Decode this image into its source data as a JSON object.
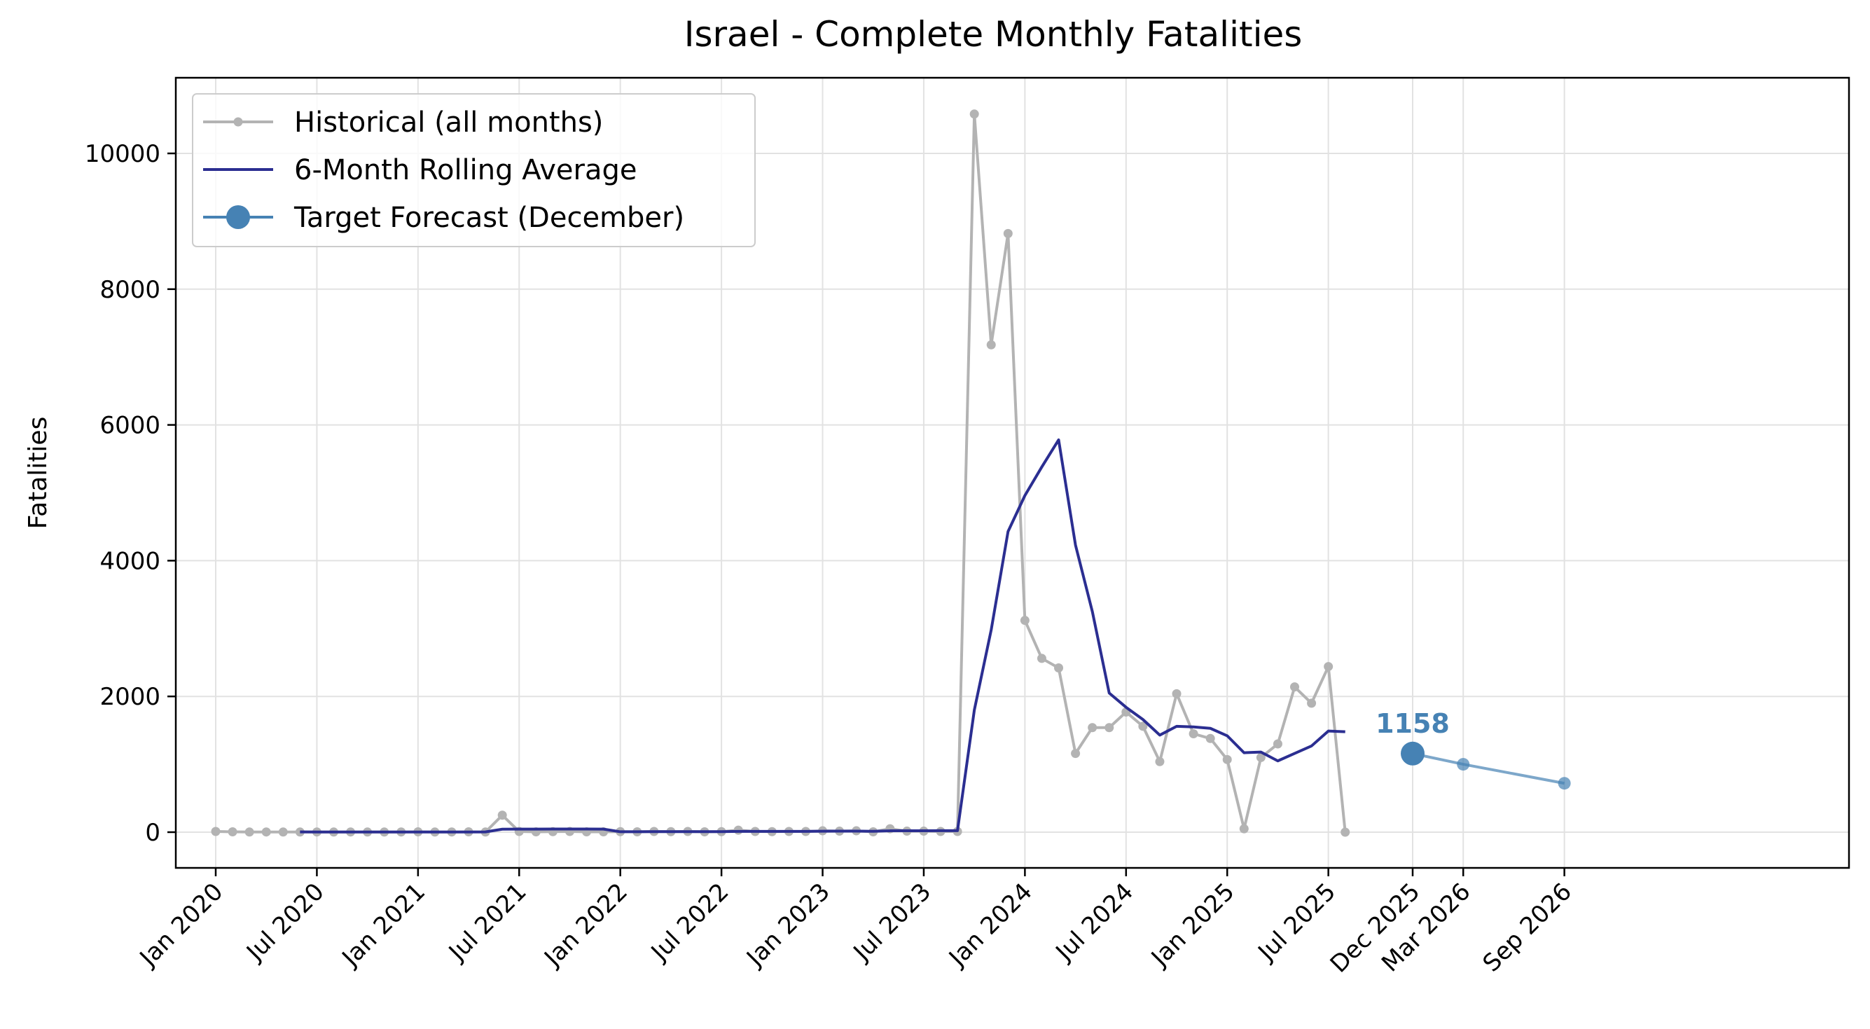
{
  "chart_data": {
    "type": "line",
    "title": "Israel - Complete Monthly Fatalities",
    "xlabel": "",
    "ylabel": "Fatalities",
    "ylim": [
      -500,
      11100
    ],
    "yticks": [
      0,
      2000,
      4000,
      6000,
      8000,
      10000
    ],
    "xticks": [
      "Jan 2020",
      "Jul 2020",
      "Jan 2021",
      "Jul 2021",
      "Jan 2022",
      "Jul 2022",
      "Jan 2023",
      "Jul 2023",
      "Jan 2024",
      "Jul 2024",
      "Jan 2025",
      "Jul 2025",
      "Dec 2025",
      "Mar 2026",
      "Sep 2026"
    ],
    "grid": true,
    "legend_placement": "top-left",
    "series": [
      {
        "name": "Historical (all months)",
        "color": "#b3b3b3",
        "x": [
          "2020-01",
          "2020-02",
          "2020-03",
          "2020-04",
          "2020-05",
          "2020-06",
          "2020-07",
          "2020-08",
          "2020-09",
          "2020-10",
          "2020-11",
          "2020-12",
          "2021-01",
          "2021-02",
          "2021-03",
          "2021-04",
          "2021-05",
          "2021-06",
          "2021-07",
          "2021-08",
          "2021-09",
          "2021-10",
          "2021-11",
          "2021-12",
          "2022-01",
          "2022-02",
          "2022-03",
          "2022-04",
          "2022-05",
          "2022-06",
          "2022-07",
          "2022-08",
          "2022-09",
          "2022-10",
          "2022-11",
          "2022-12",
          "2023-01",
          "2023-02",
          "2023-03",
          "2023-04",
          "2023-05",
          "2023-06",
          "2023-07",
          "2023-08",
          "2023-09",
          "2023-10",
          "2023-11",
          "2023-12",
          "2024-01",
          "2024-02",
          "2024-03",
          "2024-04",
          "2024-05",
          "2024-06",
          "2024-07",
          "2024-08",
          "2024-09",
          "2024-10",
          "2024-11",
          "2024-12",
          "2025-01",
          "2025-02",
          "2025-03",
          "2025-04",
          "2025-05",
          "2025-06",
          "2025-07",
          "2025-08"
        ],
        "values": [
          10,
          5,
          2,
          3,
          2,
          2,
          3,
          2,
          3,
          2,
          2,
          3,
          5,
          2,
          3,
          5,
          2,
          250,
          10,
          5,
          8,
          10,
          5,
          5,
          8,
          5,
          10,
          8,
          10,
          5,
          8,
          30,
          10,
          8,
          10,
          10,
          20,
          15,
          20,
          5,
          50,
          15,
          15,
          10,
          10,
          10580,
          7180,
          8820,
          3120,
          2560,
          2420,
          1160,
          1540,
          1540,
          1770,
          1560,
          1040,
          2040,
          1450,
          1380,
          1070,
          50,
          1100,
          1300,
          2140,
          1900,
          2440,
          0
        ]
      },
      {
        "name": "6-Month Rolling Average",
        "color": "#2b2e91",
        "x": [
          "2020-06",
          "2020-07",
          "2020-08",
          "2020-09",
          "2020-10",
          "2020-11",
          "2020-12",
          "2021-01",
          "2021-02",
          "2021-03",
          "2021-04",
          "2021-05",
          "2021-06",
          "2021-07",
          "2021-08",
          "2021-09",
          "2021-10",
          "2021-11",
          "2021-12",
          "2022-01",
          "2022-02",
          "2022-03",
          "2022-04",
          "2022-05",
          "2022-06",
          "2022-07",
          "2022-08",
          "2022-09",
          "2022-10",
          "2022-11",
          "2022-12",
          "2023-01",
          "2023-02",
          "2023-03",
          "2023-04",
          "2023-05",
          "2023-06",
          "2023-07",
          "2023-08",
          "2023-09",
          "2023-10",
          "2023-11",
          "2023-12",
          "2024-01",
          "2024-02",
          "2024-03",
          "2024-04",
          "2024-05",
          "2024-06",
          "2024-07",
          "2024-08",
          "2024-09",
          "2024-10",
          "2024-11",
          "2024-12",
          "2025-01",
          "2025-02",
          "2025-03",
          "2025-04",
          "2025-05",
          "2025-06",
          "2025-07",
          "2025-08"
        ],
        "values": [
          4,
          3,
          2,
          3,
          2,
          2,
          3,
          3,
          3,
          3,
          3,
          4,
          44,
          45,
          45,
          47,
          47,
          47,
          45,
          6,
          7,
          8,
          8,
          8,
          8,
          8,
          12,
          12,
          12,
          12,
          12,
          14,
          15,
          15,
          13,
          20,
          20,
          20,
          22,
          22,
          1800,
          2980,
          4430,
          4960,
          5380,
          5780,
          4230,
          3250,
          2050,
          1840,
          1660,
          1430,
          1560,
          1550,
          1530,
          1420,
          1170,
          1180,
          1050,
          1160,
          1270,
          1490,
          1480
        ]
      },
      {
        "name": "Target Forecast (December)",
        "color": "#4682b4",
        "x": [
          "2025-12",
          "2026-03",
          "2026-09"
        ],
        "values": [
          1158,
          1000,
          720
        ],
        "annotation": "1158"
      }
    ]
  }
}
